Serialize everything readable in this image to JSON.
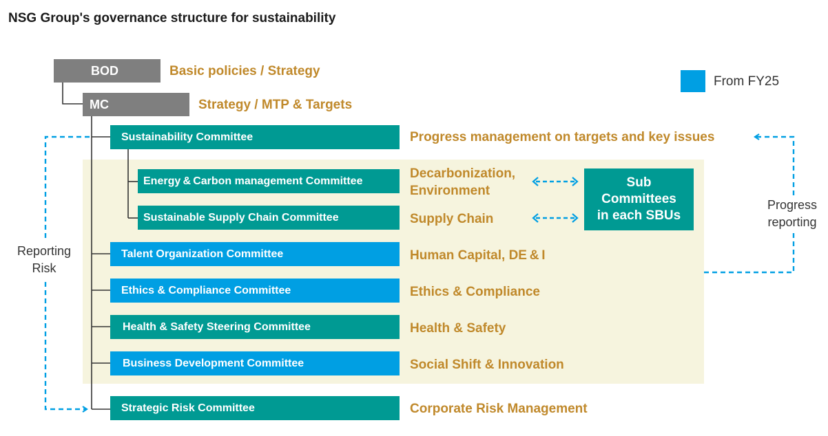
{
  "title": "NSG Group's governance structure for sustainability",
  "legend": {
    "label": "From FY25",
    "color": "#009fe3"
  },
  "colors": {
    "gray": "#7f7f7f",
    "teal": "#009a93",
    "blue": "#009fe3",
    "gold": "#c0892b",
    "band": "#f6f4de"
  },
  "bod": {
    "label": "BOD",
    "desc": "Basic policies / Strategy"
  },
  "mc": {
    "label": "MC",
    "desc": "Strategy / MTP & Targets"
  },
  "committees": [
    {
      "label": "Sustainability Committee",
      "desc": "Progress management on targets and key issues",
      "color": "teal"
    },
    {
      "label": "Energy & Carbon management Committee",
      "desc": "Decarbonization,\nEnvironment",
      "color": "teal"
    },
    {
      "label": "Sustainable Supply Chain Committee",
      "desc": "Supply Chain",
      "color": "teal"
    },
    {
      "label": "Talent Organization Committee",
      "desc": "Human Capital, DE & I",
      "color": "blue"
    },
    {
      "label": "Ethics & Compliance Committee",
      "desc": "Ethics & Compliance",
      "color": "blue"
    },
    {
      "label": "Health & Safety Steering Committee",
      "desc": "Health & Safety",
      "color": "teal"
    },
    {
      "label": "Business Development Committee",
      "desc": "Social Shift & Innovation",
      "color": "blue"
    },
    {
      "label": "Strategic Risk Committee",
      "desc": "Corporate Risk Management",
      "color": "teal"
    }
  ],
  "sub_committees": "Sub\nCommittees\nin each SBUs",
  "left_label": "Reporting\nRisk",
  "right_label": "Progress\nreporting"
}
